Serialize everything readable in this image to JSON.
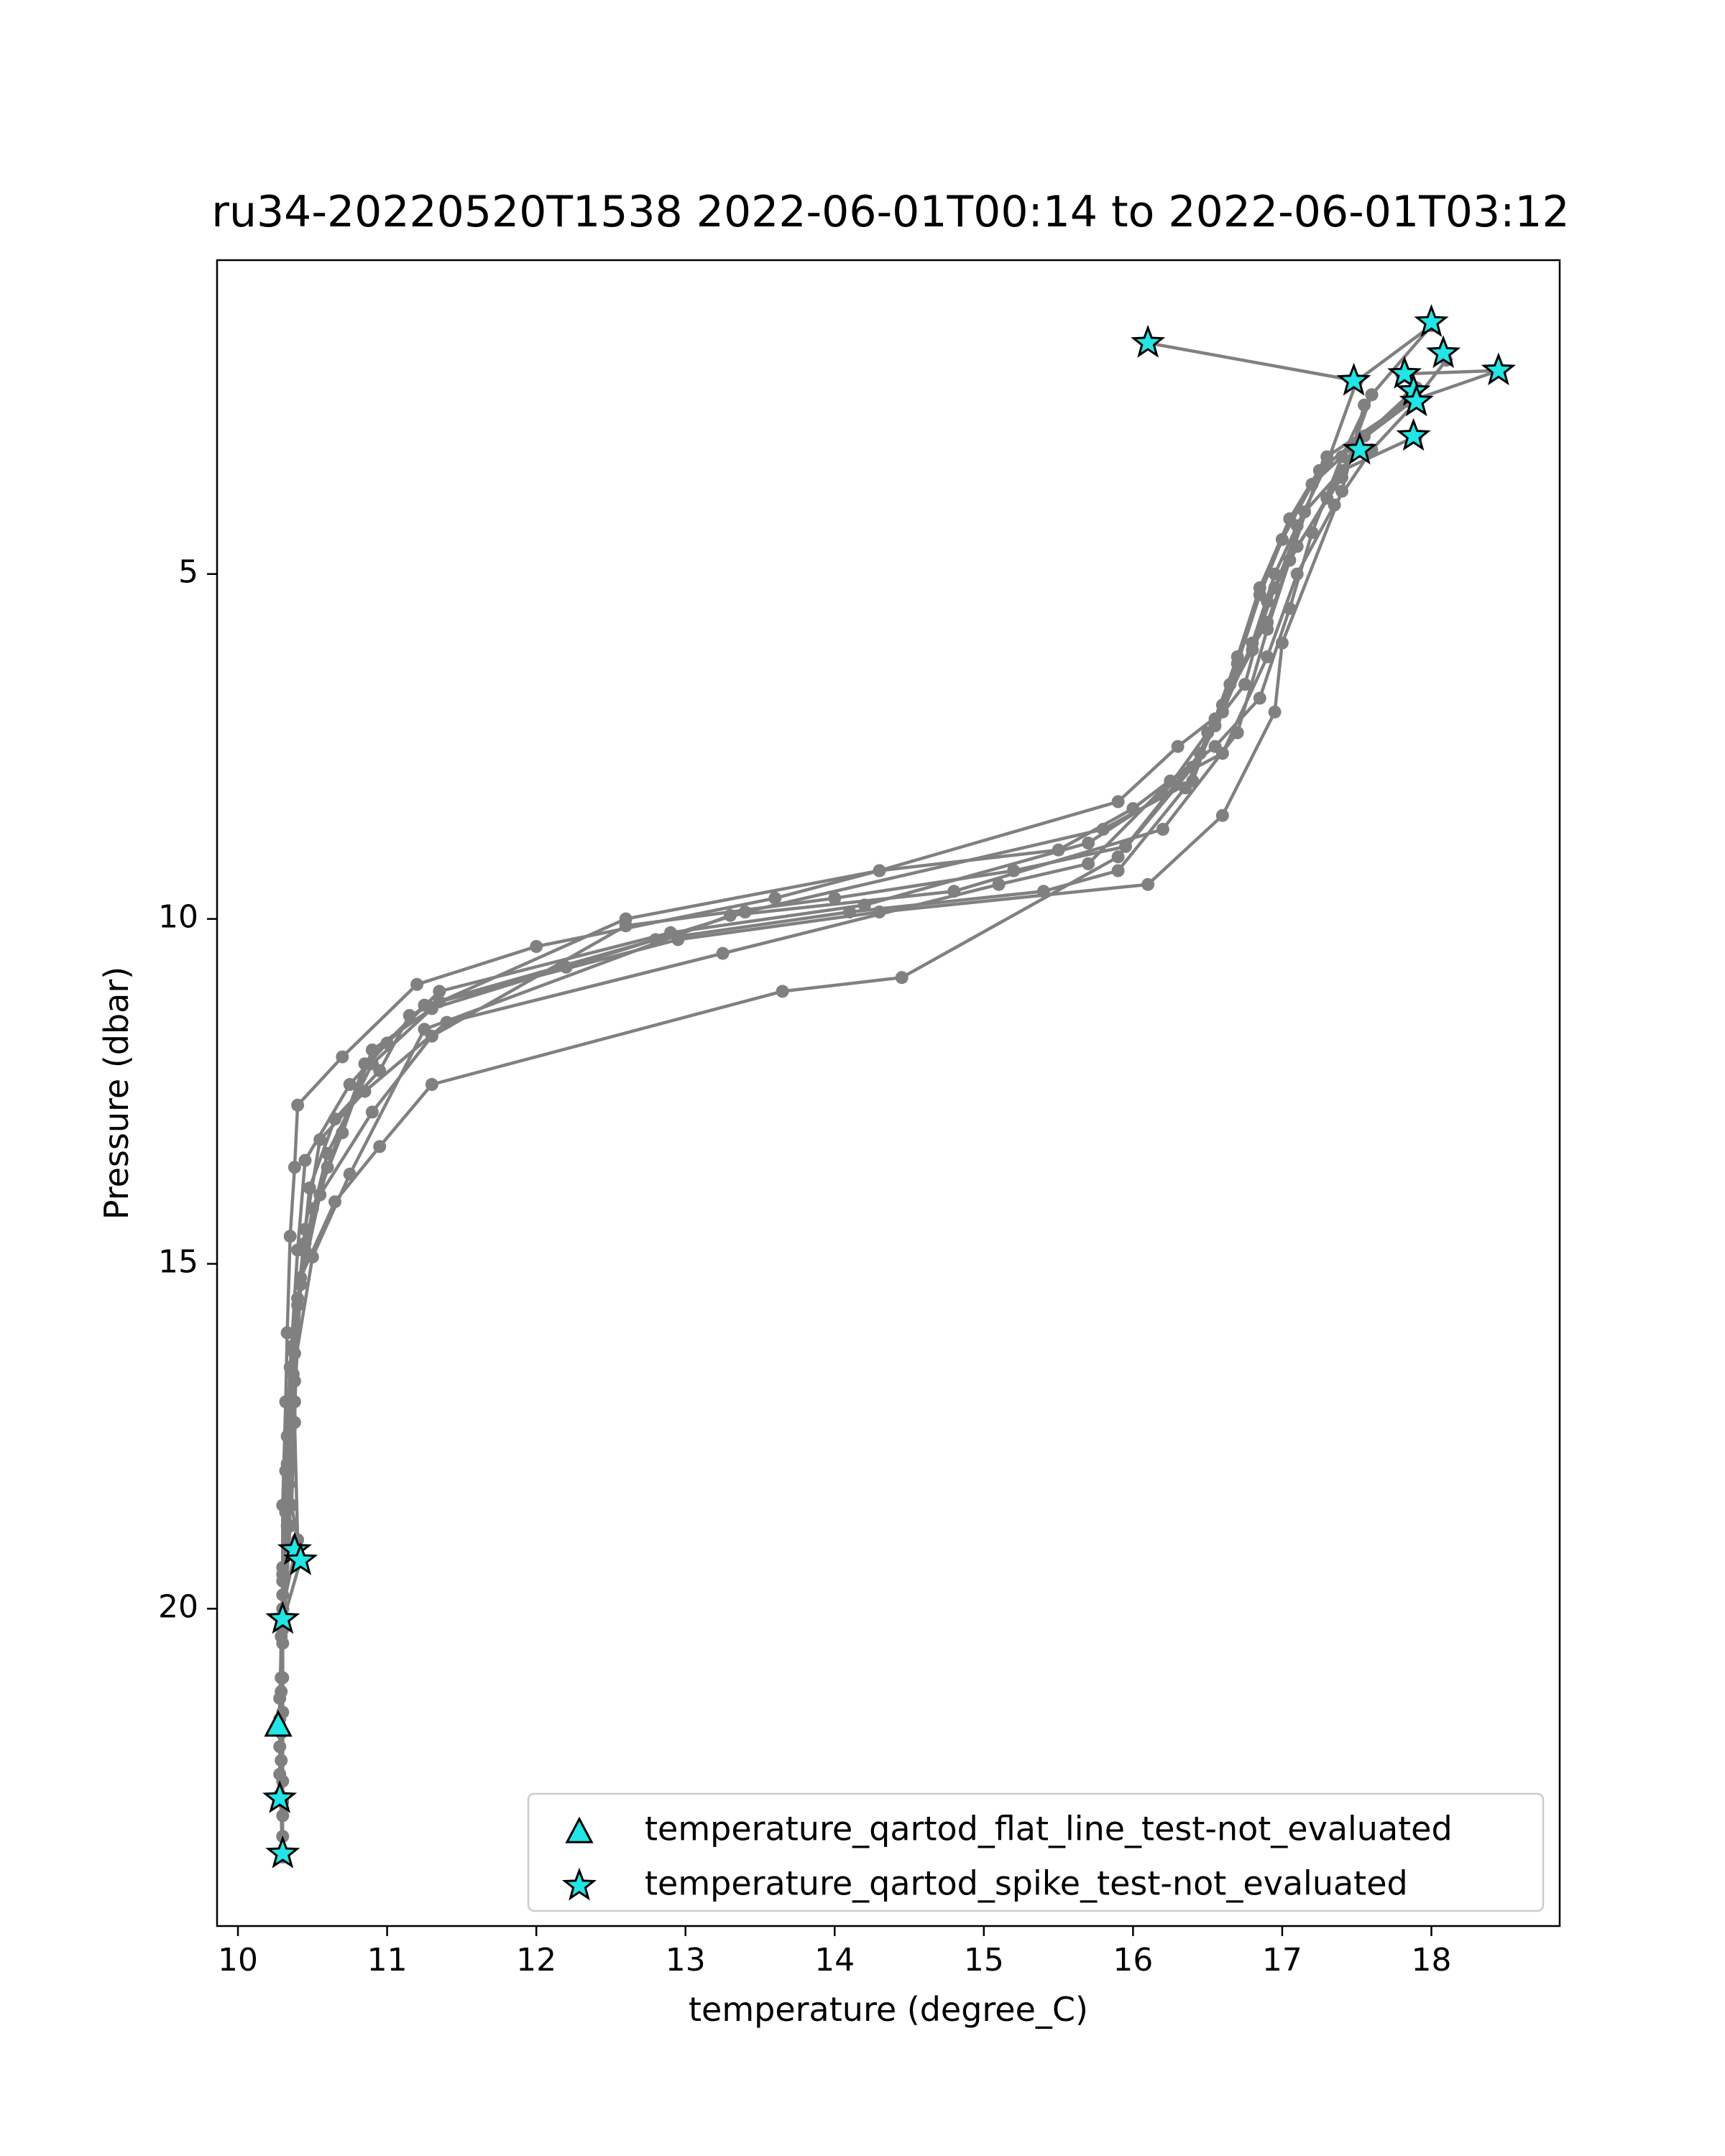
{
  "chart_data": {
    "type": "line",
    "title": "ru34-20220520T1538 2022-06-01T00:14 to 2022-06-01T03:12",
    "xlabel": "temperature (degree_C)",
    "ylabel": "Pressure (dbar)",
    "xlim": [
      9.86,
      18.86
    ],
    "ylim": [
      24.6,
      0.45
    ],
    "y_inverted": true,
    "x_ticks": [
      10,
      11,
      12,
      13,
      14,
      15,
      16,
      17,
      18
    ],
    "y_ticks": [
      5,
      10,
      15,
      20
    ],
    "grid": false,
    "legend_position": "lower-right",
    "colors": {
      "profile_line": "#808080",
      "flag_marker_fill": "#22e5e5",
      "flag_marker_edge": "#000000"
    },
    "profiles": [
      [
        [
          16.1,
          1.65
        ],
        [
          17.5,
          2.2
        ],
        [
          17.3,
          3.4
        ],
        [
          17.1,
          4.3
        ],
        [
          16.95,
          5.0
        ],
        [
          16.8,
          6.0
        ],
        [
          16.6,
          7.0
        ],
        [
          16.3,
          7.5
        ],
        [
          15.9,
          8.3
        ],
        [
          14.3,
          9.3
        ],
        [
          13.6,
          9.7
        ],
        [
          12.0,
          10.4
        ],
        [
          11.2,
          10.95
        ],
        [
          10.7,
          12.0
        ],
        [
          10.4,
          12.7
        ],
        [
          10.38,
          13.6
        ],
        [
          10.35,
          14.6
        ],
        [
          10.33,
          16.0
        ],
        [
          10.32,
          17.0
        ],
        [
          10.3,
          18.5
        ],
        [
          10.3,
          20.0
        ],
        [
          10.3,
          21.5
        ],
        [
          10.3,
          23.0
        ]
      ],
      [
        [
          17.5,
          2.2
        ],
        [
          18.0,
          1.4
        ],
        [
          17.6,
          2.4
        ],
        [
          17.4,
          3.6
        ],
        [
          17.1,
          4.6
        ],
        [
          16.9,
          5.4
        ],
        [
          16.75,
          6.6
        ],
        [
          16.5,
          7.3
        ],
        [
          16.2,
          8.2
        ],
        [
          15.7,
          8.9
        ],
        [
          14.2,
          9.8
        ],
        [
          12.9,
          10.2
        ],
        [
          11.35,
          11.05
        ],
        [
          11.0,
          11.8
        ],
        [
          10.75,
          12.4
        ],
        [
          10.45,
          13.5
        ],
        [
          10.4,
          14.8
        ],
        [
          10.35,
          16.5
        ],
        [
          10.32,
          18.0
        ],
        [
          10.3,
          19.5
        ],
        [
          10.3,
          21.0
        ],
        [
          10.3,
          22.5
        ]
      ],
      [
        [
          17.8,
          2.1
        ],
        [
          18.45,
          2.05
        ],
        [
          17.85,
          2.5
        ],
        [
          17.3,
          3.3
        ],
        [
          17.05,
          4.2
        ],
        [
          16.85,
          5.2
        ],
        [
          16.7,
          6.2
        ],
        [
          16.55,
          7.1
        ],
        [
          16.4,
          8.0
        ],
        [
          15.8,
          8.7
        ],
        [
          13.4,
          9.9
        ],
        [
          12.2,
          10.7
        ],
        [
          11.3,
          11.3
        ],
        [
          10.9,
          11.9
        ],
        [
          10.7,
          13.1
        ],
        [
          10.5,
          14.2
        ],
        [
          10.42,
          15.3
        ],
        [
          10.38,
          17.0
        ],
        [
          10.36,
          18.5
        ],
        [
          10.42,
          19.3
        ],
        [
          10.3,
          20.2
        ],
        [
          10.28,
          21.7
        ]
      ],
      [
        [
          18.1,
          1.9
        ],
        [
          17.9,
          2.45
        ],
        [
          17.5,
          3.1
        ],
        [
          17.3,
          3.9
        ],
        [
          17.05,
          4.8
        ],
        [
          16.9,
          5.7
        ],
        [
          16.65,
          6.6
        ],
        [
          16.45,
          7.6
        ],
        [
          15.95,
          8.95
        ],
        [
          15.2,
          9.3
        ],
        [
          14.0,
          9.7
        ],
        [
          12.6,
          10.1
        ],
        [
          11.3,
          11.7
        ],
        [
          10.9,
          12.8
        ],
        [
          10.55,
          14.0
        ],
        [
          10.4,
          15.5
        ],
        [
          10.38,
          17.3
        ],
        [
          10.4,
          19.0
        ],
        [
          10.3,
          20.0
        ],
        [
          10.28,
          21.3
        ],
        [
          10.28,
          22.7
        ]
      ],
      [
        [
          17.9,
          2.3
        ],
        [
          17.55,
          3.0
        ],
        [
          17.2,
          3.7
        ],
        [
          17.0,
          4.5
        ],
        [
          16.85,
          5.3
        ],
        [
          16.7,
          6.3
        ],
        [
          16.55,
          7.2
        ],
        [
          16.35,
          8.1
        ],
        [
          15.9,
          9.3
        ],
        [
          15.4,
          9.6
        ],
        [
          14.1,
          9.9
        ],
        [
          12.8,
          10.3
        ],
        [
          11.25,
          11.25
        ],
        [
          10.85,
          12.1
        ],
        [
          10.6,
          13.6
        ],
        [
          10.45,
          14.8
        ],
        [
          10.36,
          16.2
        ],
        [
          10.33,
          17.5
        ],
        [
          10.35,
          18.8
        ],
        [
          10.3,
          20.5
        ],
        [
          10.28,
          22.0
        ]
      ],
      [
        [
          17.9,
          3.0
        ],
        [
          17.4,
          3.5
        ],
        [
          17.15,
          4.1
        ],
        [
          16.95,
          5.2
        ],
        [
          16.8,
          6.1
        ],
        [
          16.6,
          6.9
        ],
        [
          16.4,
          7.8
        ],
        [
          15.9,
          9.1
        ],
        [
          14.45,
          10.85
        ],
        [
          13.65,
          11.05
        ],
        [
          11.3,
          12.4
        ],
        [
          10.95,
          13.3
        ],
        [
          10.65,
          14.1
        ],
        [
          10.42,
          15.2
        ],
        [
          10.38,
          16.7
        ],
        [
          10.34,
          18.2
        ],
        [
          10.3,
          19.8
        ],
        [
          10.29,
          21.2
        ],
        [
          10.3,
          22.8
        ]
      ],
      [
        [
          17.9,
          2.5
        ],
        [
          17.6,
          3.2
        ],
        [
          17.35,
          4.0
        ],
        [
          17.1,
          5.0
        ],
        [
          16.9,
          6.2
        ],
        [
          16.6,
          7.6
        ],
        [
          16.25,
          8.0
        ],
        [
          15.7,
          9.2
        ],
        [
          15.1,
          9.5
        ],
        [
          13.25,
          10.5
        ],
        [
          11.4,
          11.5
        ],
        [
          10.85,
          12.5
        ],
        [
          10.55,
          13.2
        ],
        [
          10.45,
          14.5
        ],
        [
          10.38,
          16.0
        ],
        [
          10.35,
          17.4
        ],
        [
          10.33,
          18.8
        ],
        [
          10.3,
          20.3
        ],
        [
          10.29,
          22.2
        ]
      ],
      [
        [
          17.6,
          2.4
        ],
        [
          17.4,
          3.3
        ],
        [
          17.2,
          4.4
        ],
        [
          17.05,
          5.5
        ],
        [
          16.85,
          6.8
        ],
        [
          16.55,
          7.5
        ],
        [
          16.0,
          8.4
        ],
        [
          15.5,
          9.0
        ],
        [
          14.3,
          9.3
        ],
        [
          12.6,
          10.0
        ],
        [
          11.15,
          11.4
        ],
        [
          10.95,
          12.2
        ],
        [
          10.65,
          12.9
        ],
        [
          10.48,
          13.9
        ],
        [
          10.4,
          15.6
        ],
        [
          10.35,
          17.2
        ],
        [
          10.32,
          18.6
        ],
        [
          10.29,
          20.4
        ],
        [
          10.28,
          21.6
        ]
      ],
      [
        [
          17.55,
          2.55
        ],
        [
          17.4,
          3.8
        ],
        [
          17.0,
          6.0
        ],
        [
          16.95,
          7.0
        ],
        [
          16.6,
          8.5
        ],
        [
          16.1,
          9.5
        ],
        [
          14.3,
          9.9
        ],
        [
          12.95,
          10.3
        ],
        [
          11.35,
          11.2
        ],
        [
          10.9,
          12.1
        ],
        [
          10.6,
          13.4
        ],
        [
          10.45,
          14.7
        ],
        [
          10.38,
          16.3
        ],
        [
          10.33,
          17.9
        ],
        [
          10.3,
          19.6
        ],
        [
          10.29,
          21.0
        ],
        [
          10.28,
          22.4
        ],
        [
          10.3,
          23.6
        ]
      ],
      [
        [
          17.85,
          2.45
        ],
        [
          17.25,
          3.5
        ],
        [
          17.05,
          4.8
        ],
        [
          16.9,
          5.8
        ],
        [
          16.7,
          7.3
        ],
        [
          16.2,
          8.7
        ],
        [
          14.8,
          9.6
        ],
        [
          13.3,
          9.95
        ],
        [
          11.25,
          11.6
        ],
        [
          10.75,
          13.7
        ],
        [
          10.5,
          14.9
        ],
        [
          10.37,
          16.6
        ],
        [
          10.33,
          18.0
        ],
        [
          10.3,
          19.4
        ],
        [
          10.29,
          21.8
        ],
        [
          10.3,
          23.3
        ]
      ]
    ],
    "flagged_points": {
      "temperature_qartod_flat_line_test-not_evaluated": [
        [
          10.27,
          21.7
        ]
      ],
      "temperature_qartod_spike_test-not_evaluated": [
        [
          16.1,
          1.65
        ],
        [
          18.0,
          1.35
        ],
        [
          18.08,
          1.8
        ],
        [
          18.45,
          2.05
        ],
        [
          17.48,
          2.2
        ],
        [
          17.82,
          2.1
        ],
        [
          17.88,
          2.35
        ],
        [
          17.9,
          2.5
        ],
        [
          17.52,
          3.2
        ],
        [
          17.88,
          3.0
        ],
        [
          10.38,
          19.15
        ],
        [
          10.42,
          19.3
        ],
        [
          10.3,
          20.15
        ],
        [
          10.28,
          22.75
        ],
        [
          10.3,
          23.55
        ]
      ]
    },
    "legend": [
      {
        "label": "temperature_qartod_flat_line_test-not_evaluated",
        "marker": "triangle"
      },
      {
        "label": "temperature_qartod_spike_test-not_evaluated",
        "marker": "star"
      }
    ]
  }
}
